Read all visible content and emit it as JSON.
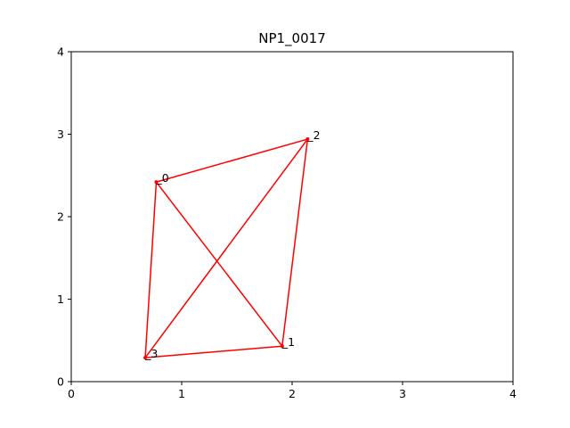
{
  "chart_data": {
    "type": "line",
    "title": "NP1_0017",
    "xlabel": "",
    "ylabel": "",
    "xlim": [
      0,
      4
    ],
    "ylim": [
      0,
      4
    ],
    "xticks": [
      "0",
      "1",
      "2",
      "3",
      "4"
    ],
    "yticks": [
      "0",
      "1",
      "2",
      "3",
      "4"
    ],
    "grid": false,
    "line_color": "#ff0000",
    "points": [
      {
        "label": "0",
        "x": 0.77,
        "y": 2.42
      },
      {
        "label": "1",
        "x": 1.91,
        "y": 0.43
      },
      {
        "label": "2",
        "x": 2.14,
        "y": 2.94
      },
      {
        "label": "3",
        "x": 0.67,
        "y": 0.29
      }
    ],
    "edges": [
      [
        0,
        2
      ],
      [
        2,
        1
      ],
      [
        1,
        3
      ],
      [
        3,
        0
      ],
      [
        0,
        1
      ],
      [
        2,
        3
      ]
    ]
  }
}
